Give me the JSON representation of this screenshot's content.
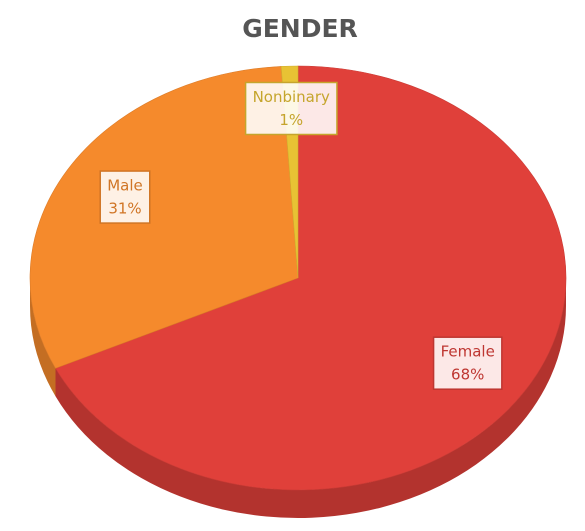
{
  "chart_data": {
    "type": "pie",
    "title": "GENDER",
    "categories": [
      "Female",
      "Male",
      "Nonbinary"
    ],
    "values": [
      68,
      31,
      1
    ],
    "value_labels": [
      "68%",
      "31%",
      "1%"
    ],
    "colors": [
      "#e0403a",
      "#f58a2c",
      "#e8c234"
    ]
  }
}
